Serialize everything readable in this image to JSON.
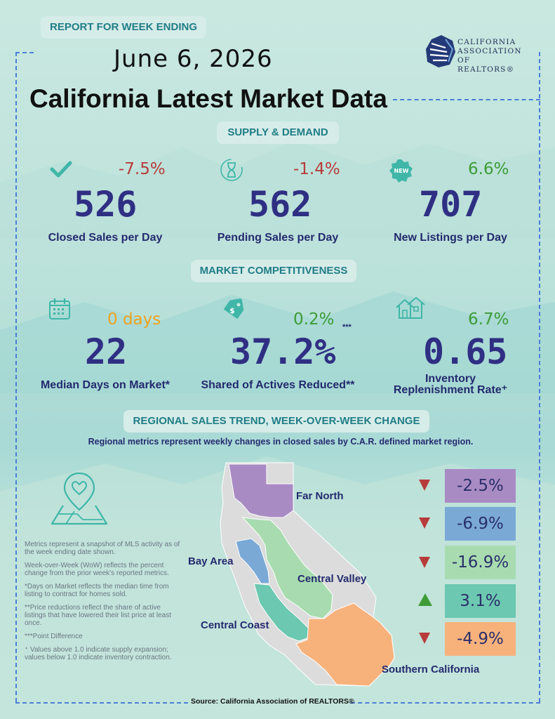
{
  "header": {
    "week_label": "REPORT FOR WEEK ENDING",
    "date": "June 6, 2026",
    "title": "California Latest Market Data",
    "logo_lines": [
      "CALIFORNIA",
      "ASSOCIATION",
      "OF REALTORS®"
    ]
  },
  "supply_demand": {
    "section_label": "SUPPLY & DEMAND",
    "metrics": [
      {
        "icon": "checkmark-icon",
        "change": "-7.5%",
        "value": "526",
        "label": "Closed Sales per Day"
      },
      {
        "icon": "hourglass-icon",
        "change": "-1.4%",
        "value": "562",
        "label": "Pending Sales per Day"
      },
      {
        "icon": "new-badge-icon",
        "change": "6.6%",
        "value": "707",
        "label": "New Listings per Day"
      }
    ]
  },
  "competitiveness": {
    "section_label": "MARKET COMPETITIVENESS",
    "metrics": [
      {
        "icon": "calendar-icon",
        "change": "0 days",
        "value": "22",
        "label": "Median Days on Market*"
      },
      {
        "icon": "price-tag-icon",
        "change": "0.2%",
        "note": "***",
        "value": "37.2%",
        "label": "Shared of Actives Reduced**"
      },
      {
        "icon": "houses-icon",
        "change": "6.7%",
        "value": "0.65",
        "label_line1": "Inventory",
        "label_line2": "Replenishment Rate⁺"
      }
    ]
  },
  "regional": {
    "section_label": "REGIONAL SALES TREND, WEEK-OVER-WEEK CHANGE",
    "subtitle": "Regional metrics represent weekly changes in closed sales by C.A.R. defined market region.",
    "regions": [
      {
        "name": "Far North",
        "change": "-2.5%",
        "direction": "down",
        "color": "#a98bc4"
      },
      {
        "name": "Bay Area",
        "change": "-6.9%",
        "direction": "down",
        "color": "#7aa9d6"
      },
      {
        "name": "Central Valley",
        "change": "-16.9%",
        "direction": "down",
        "color": "#a8dcb0"
      },
      {
        "name": "Central Coast",
        "change": "3.1%",
        "direction": "up",
        "color": "#6cc8b0"
      },
      {
        "name": "Southern California",
        "change": "-4.9%",
        "direction": "down",
        "color": "#f7b27c"
      }
    ]
  },
  "notes": [
    "Metrics represent a snapshot of MLS activity as of the week ending date shown.",
    "Week-over-Week (WoW) reflects the percent change from the prior week's reported metrics.",
    "*Days on Market reflects the median time from listing to contract for homes sold.",
    "**Price reductions reflect the share of active listings that have lowered their list price at least once.",
    "***Point Difference",
    "⁺ Values above 1.0 indicate supply expansion; values below 1.0 indicate inventory contraction."
  ],
  "source": "Source: California Association of REALTORS®"
}
